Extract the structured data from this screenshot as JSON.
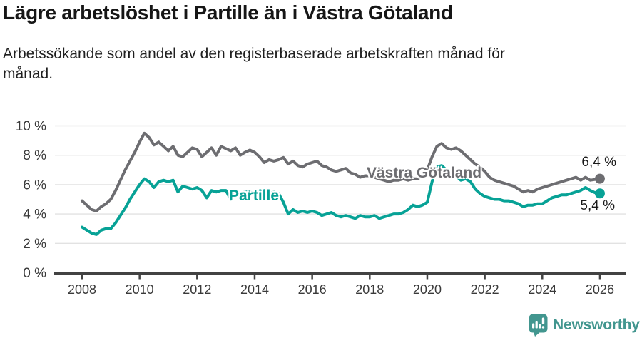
{
  "header": {
    "title": "Lägre arbetslöshet i Partille än i Västra Götaland",
    "subtitle": "Arbetssökande som andel av den registerbaserade arbetskraften månad för månad.",
    "subtitle_lines": [
      "Arbetssökande som andel av den registerbaserade arbetskraften månad för",
      "månad."
    ]
  },
  "chart_data": {
    "type": "line",
    "title": "Lägre arbetslöshet i Partille än i Västra Götaland",
    "subtitle": "Arbetssökande som andel av den registerbaserade arbetskraften månad för månad.",
    "xlabel": "",
    "ylabel": "",
    "x_unit": "year",
    "y_unit": "%",
    "x_start": 2008.0,
    "x_step_years": 0.1666667,
    "xlim": [
      2007.0,
      2026.9
    ],
    "ylim": [
      0,
      10
    ],
    "grid": "horizontal",
    "legend": "inline-labels",
    "xticks": {
      "values": [
        2008,
        2010,
        2012,
        2014,
        2016,
        2018,
        2020,
        2022,
        2024,
        2026
      ],
      "labels": [
        "2008",
        "2010",
        "2012",
        "2014",
        "2016",
        "2018",
        "2020",
        "2022",
        "2024",
        "2026"
      ]
    },
    "yticks": {
      "values": [
        0,
        2,
        4,
        6,
        8,
        10
      ],
      "labels": [
        "0 %",
        "2 %",
        "4 %",
        "6 %",
        "8 %",
        "10 %"
      ]
    },
    "series": [
      {
        "id": "vastra-gotaland",
        "name": "Västra Götaland",
        "color": "#6d6d71",
        "end_label": "6,4 %",
        "end_value": 6.4,
        "values": [
          4.9,
          4.6,
          4.3,
          4.2,
          4.5,
          4.7,
          5.0,
          5.6,
          6.3,
          7.0,
          7.6,
          8.2,
          8.9,
          9.5,
          9.2,
          8.7,
          8.9,
          8.6,
          8.3,
          8.6,
          8.0,
          7.9,
          8.2,
          8.5,
          8.4,
          7.9,
          8.2,
          8.5,
          8.0,
          8.6,
          8.45,
          8.3,
          8.5,
          8.0,
          8.2,
          8.35,
          8.2,
          7.9,
          7.5,
          7.7,
          7.6,
          7.7,
          7.85,
          7.4,
          7.6,
          7.3,
          7.2,
          7.4,
          7.5,
          7.6,
          7.3,
          7.2,
          7.0,
          6.9,
          7.0,
          7.1,
          6.8,
          6.7,
          6.5,
          6.6,
          6.6,
          6.5,
          6.4,
          6.3,
          6.2,
          6.3,
          6.3,
          6.4,
          6.3,
          6.4,
          6.4,
          6.6,
          7.0,
          7.9,
          8.6,
          8.8,
          8.5,
          8.4,
          8.5,
          8.3,
          8.0,
          7.7,
          7.4,
          7.2,
          6.9,
          6.5,
          6.3,
          6.2,
          6.1,
          6.0,
          5.9,
          5.7,
          5.5,
          5.6,
          5.5,
          5.7,
          5.8,
          5.9,
          6.0,
          6.1,
          6.2,
          6.3,
          6.4,
          6.5,
          6.3,
          6.5,
          6.3,
          6.35,
          6.4
        ]
      },
      {
        "id": "partille",
        "name": "Partille",
        "color": "#07a296",
        "end_label": "5,4 %",
        "end_value": 5.4,
        "values": [
          3.1,
          2.9,
          2.7,
          2.6,
          2.9,
          3.0,
          3.0,
          3.4,
          3.9,
          4.4,
          5.0,
          5.5,
          6.0,
          6.4,
          6.2,
          5.8,
          6.2,
          6.3,
          6.2,
          6.3,
          5.5,
          5.9,
          5.8,
          5.7,
          5.8,
          5.6,
          5.1,
          5.6,
          5.5,
          5.6,
          5.6,
          5.0,
          5.5,
          5.4,
          5.5,
          5.5,
          5.4,
          5.5,
          5.6,
          5.4,
          5.5,
          5.4,
          4.8,
          4.0,
          4.3,
          4.1,
          4.2,
          4.1,
          4.2,
          4.1,
          3.9,
          4.0,
          4.1,
          3.9,
          3.8,
          3.9,
          3.8,
          3.7,
          3.9,
          3.8,
          3.8,
          3.9,
          3.7,
          3.8,
          3.9,
          4.0,
          4.0,
          4.1,
          4.3,
          4.6,
          4.5,
          4.6,
          4.8,
          6.2,
          7.2,
          7.3,
          7.0,
          6.8,
          6.6,
          6.3,
          6.4,
          6.2,
          5.7,
          5.4,
          5.2,
          5.1,
          5.0,
          5.0,
          4.9,
          4.9,
          4.8,
          4.7,
          4.5,
          4.6,
          4.6,
          4.7,
          4.7,
          4.9,
          5.1,
          5.2,
          5.3,
          5.3,
          5.4,
          5.5,
          5.6,
          5.8,
          5.6,
          5.45,
          5.4
        ]
      }
    ]
  },
  "colors": {
    "axis": "#424242",
    "grid": "#e2e2e2",
    "tick_label": "#3a3a3a",
    "series_gray": "#6d6d71",
    "series_teal": "#07a296",
    "brand_teal": "#42968f"
  },
  "footer": {
    "brand": "Newsworthy",
    "logo_icon": "bar-chart-speech-pin"
  }
}
